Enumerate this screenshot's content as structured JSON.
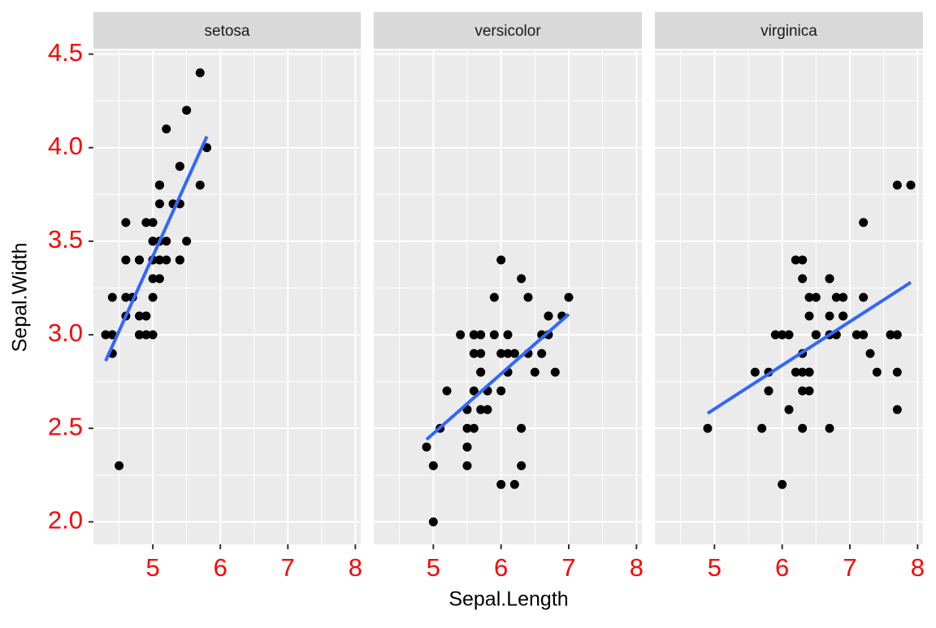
{
  "chart_data": {
    "type": "scatter",
    "x_label": "Sepal.Length",
    "y_label": "Sepal.Width",
    "xlim": [
      4.12,
      8.08
    ],
    "ylim": [
      1.88,
      4.52
    ],
    "xticks": [
      5,
      6,
      7,
      8
    ],
    "xminorticks": [
      4.5,
      5.5,
      6.5,
      7.5
    ],
    "yticks": [
      {
        "value": 2,
        "label": "2.0"
      },
      2.5,
      {
        "value": 3,
        "label": "3.0"
      },
      3.5,
      {
        "value": 4,
        "label": "4.0"
      },
      4.5
    ],
    "yminorticks": [
      2.25,
      2.75,
      3.25,
      3.75,
      4.25
    ],
    "grid": true,
    "point_color": "#000000",
    "fit_color": "#3366ff",
    "tick_label_color": "#ff0000",
    "facets": [
      {
        "title": "setosa",
        "x": [
          5.1,
          4.9,
          4.7,
          4.6,
          5.0,
          5.4,
          4.6,
          5.0,
          4.4,
          4.9,
          5.4,
          4.8,
          4.8,
          4.3,
          5.8,
          5.7,
          5.4,
          5.1,
          5.7,
          5.1,
          5.4,
          5.1,
          4.6,
          5.1,
          4.8,
          5.0,
          5.0,
          5.2,
          5.2,
          4.7,
          4.8,
          5.4,
          5.2,
          5.5,
          4.9,
          5.0,
          5.5,
          4.9,
          4.4,
          5.1,
          5.0,
          4.5,
          4.4,
          5.0,
          5.1,
          4.8,
          5.1,
          4.6,
          5.3,
          5.0
        ],
        "y": [
          3.5,
          3.0,
          3.2,
          3.1,
          3.6,
          3.9,
          3.4,
          3.4,
          2.9,
          3.1,
          3.7,
          3.4,
          3.0,
          3.0,
          4.0,
          4.4,
          3.9,
          3.5,
          3.8,
          3.8,
          3.4,
          3.7,
          3.6,
          3.3,
          3.4,
          3.0,
          3.4,
          3.5,
          3.4,
          3.2,
          3.1,
          3.4,
          4.1,
          4.2,
          3.1,
          3.2,
          3.5,
          3.6,
          3.0,
          3.4,
          3.5,
          2.3,
          3.2,
          3.5,
          3.8,
          3.0,
          3.8,
          3.2,
          3.7,
          3.3
        ],
        "fit_x": [
          4.3,
          5.8
        ],
        "fit_y": [
          2.86,
          4.06
        ]
      },
      {
        "title": "versicolor",
        "x": [
          7.0,
          6.4,
          6.9,
          5.5,
          6.5,
          5.7,
          6.3,
          4.9,
          6.6,
          5.2,
          5.0,
          5.9,
          6.0,
          6.1,
          5.6,
          6.7,
          5.6,
          5.8,
          6.2,
          5.6,
          5.9,
          6.1,
          6.3,
          6.1,
          6.4,
          6.6,
          6.8,
          6.7,
          6.0,
          5.7,
          5.5,
          5.5,
          5.8,
          6.0,
          5.4,
          6.0,
          6.7,
          6.3,
          5.6,
          5.5,
          5.5,
          6.1,
          5.8,
          5.0,
          5.6,
          5.7,
          5.7,
          6.2,
          5.1,
          5.7
        ],
        "y": [
          3.2,
          3.2,
          3.1,
          2.3,
          2.8,
          2.8,
          3.3,
          2.4,
          2.9,
          2.7,
          2.0,
          3.0,
          2.2,
          2.9,
          2.9,
          3.1,
          3.0,
          2.7,
          2.2,
          2.5,
          3.2,
          2.8,
          2.5,
          2.8,
          2.9,
          3.0,
          2.8,
          3.0,
          2.9,
          2.6,
          2.4,
          2.4,
          2.7,
          2.7,
          3.0,
          3.4,
          3.1,
          2.3,
          3.0,
          2.5,
          2.6,
          3.0,
          2.6,
          2.3,
          2.7,
          3.0,
          2.9,
          2.9,
          2.5,
          2.8
        ],
        "fit_x": [
          4.9,
          7.0
        ],
        "fit_y": [
          2.44,
          3.11
        ]
      },
      {
        "title": "virginica",
        "x": [
          6.3,
          5.8,
          7.1,
          6.3,
          6.5,
          7.6,
          4.9,
          7.3,
          6.7,
          7.2,
          6.5,
          6.4,
          6.8,
          5.7,
          5.8,
          6.4,
          6.5,
          7.7,
          7.7,
          6.0,
          6.9,
          5.6,
          7.7,
          6.3,
          6.7,
          7.2,
          6.2,
          6.1,
          6.4,
          7.2,
          7.4,
          7.9,
          6.4,
          6.3,
          6.1,
          7.7,
          6.3,
          6.4,
          6.0,
          6.9,
          6.7,
          6.9,
          5.8,
          6.8,
          6.7,
          6.7,
          6.3,
          6.5,
          6.2,
          5.9
        ],
        "y": [
          3.3,
          2.7,
          3.0,
          2.9,
          3.0,
          3.0,
          2.5,
          2.9,
          2.5,
          3.6,
          3.2,
          2.7,
          3.0,
          2.5,
          2.8,
          3.2,
          3.0,
          3.8,
          2.6,
          2.2,
          3.2,
          2.8,
          2.8,
          2.7,
          3.3,
          3.2,
          2.8,
          3.0,
          2.8,
          3.0,
          2.8,
          3.8,
          2.8,
          2.8,
          2.6,
          3.0,
          3.4,
          3.1,
          3.0,
          3.1,
          3.1,
          3.1,
          2.7,
          3.2,
          3.3,
          3.0,
          2.5,
          3.0,
          3.4,
          3.0
        ],
        "fit_x": [
          4.9,
          7.9
        ],
        "fit_y": [
          2.58,
          3.28
        ]
      }
    ]
  }
}
